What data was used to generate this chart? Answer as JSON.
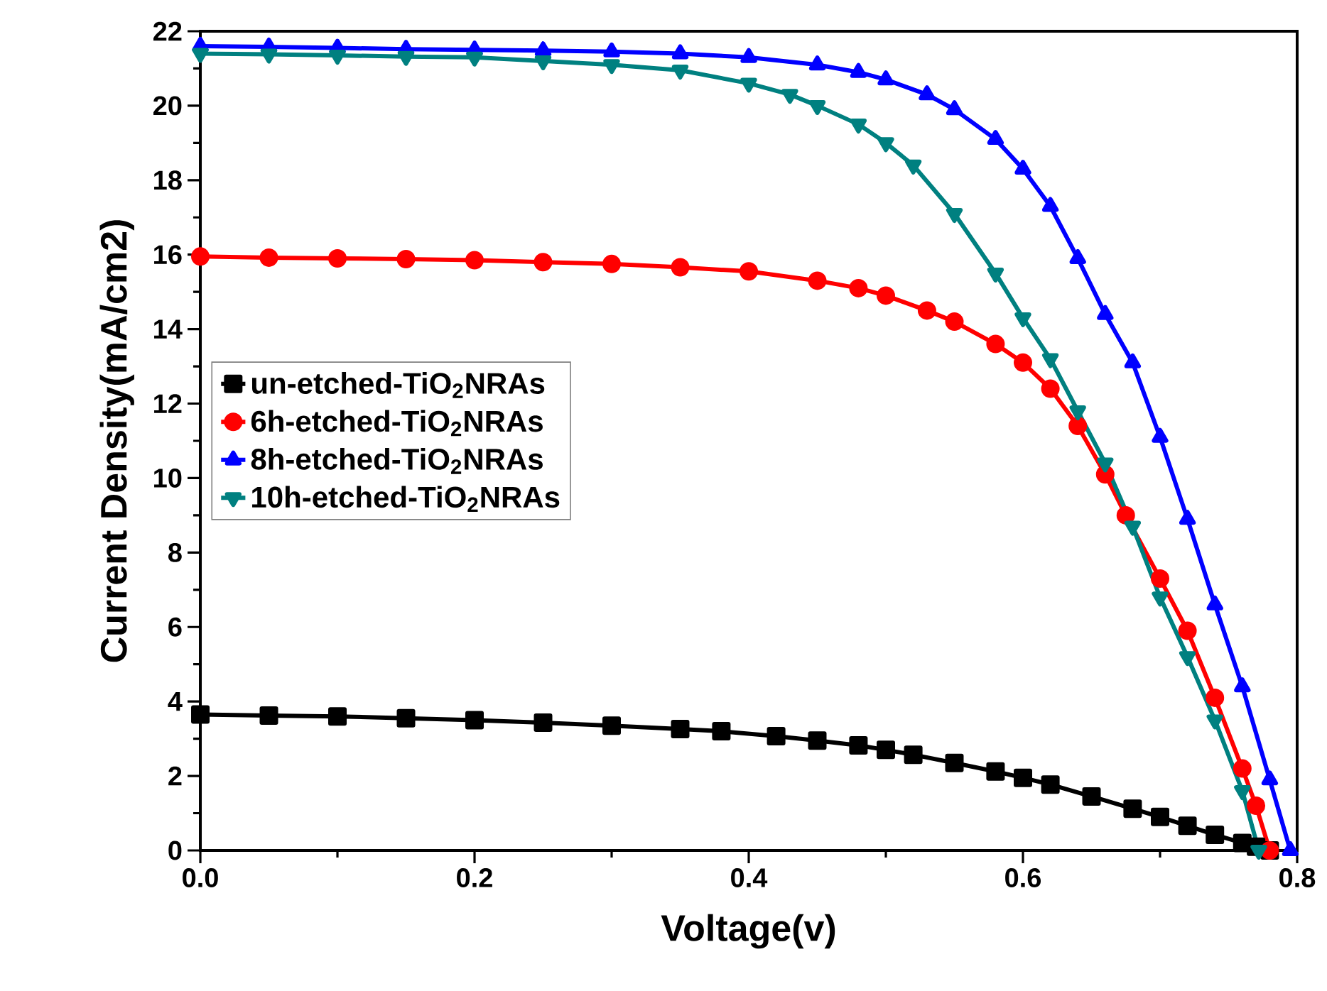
{
  "chart_data": {
    "type": "line",
    "xlabel": "Voltage(v)",
    "ylabel": "Current Density(mA/cm2)",
    "xlim": [
      0,
      0.8
    ],
    "ylim": [
      0,
      22
    ],
    "xticks": [
      {
        "value": 0,
        "label": "0.0"
      },
      0.2,
      0.4,
      0.6,
      0.8
    ],
    "yticks": [
      0,
      2,
      4,
      6,
      8,
      10,
      12,
      14,
      16,
      18,
      20,
      22
    ],
    "legend": "left",
    "line_style": "solid",
    "series": [
      {
        "name": "un-etched-TiO$_{2}$NRAs",
        "color": "#000000",
        "marker": "square",
        "x": [
          0,
          0.05,
          0.1,
          0.15,
          0.2,
          0.25,
          0.3,
          0.35,
          0.38,
          0.42,
          0.45,
          0.48,
          0.5,
          0.52,
          0.55,
          0.58,
          0.6,
          0.62,
          0.65,
          0.68,
          0.7,
          0.72,
          0.74,
          0.76,
          0.77,
          0.78
        ],
        "values": [
          3.65,
          3.62,
          3.6,
          3.55,
          3.5,
          3.43,
          3.35,
          3.26,
          3.2,
          3.07,
          2.95,
          2.82,
          2.7,
          2.57,
          2.35,
          2.12,
          1.95,
          1.77,
          1.45,
          1.12,
          0.9,
          0.66,
          0.42,
          0.2,
          0.1,
          0
        ]
      },
      {
        "name": "6h-etched-TiO$_{2}$NRAs",
        "color": "#ff0000",
        "marker": "circle",
        "x": [
          0,
          0.05,
          0.1,
          0.15,
          0.2,
          0.25,
          0.3,
          0.35,
          0.4,
          0.45,
          0.48,
          0.5,
          0.53,
          0.55,
          0.58,
          0.6,
          0.62,
          0.64,
          0.66,
          0.675,
          0.7,
          0.72,
          0.74,
          0.76,
          0.77,
          0.78
        ],
        "values": [
          15.95,
          15.92,
          15.9,
          15.88,
          15.85,
          15.8,
          15.75,
          15.66,
          15.55,
          15.3,
          15.1,
          14.9,
          14.5,
          14.2,
          13.6,
          13.1,
          12.4,
          11.4,
          10.1,
          9.0,
          7.3,
          5.9,
          4.1,
          2.2,
          1.2,
          0
        ]
      },
      {
        "name": "8h-etched-TiO$_{2}$NRAs",
        "color": "#0000ff",
        "marker": "triangle",
        "x": [
          0,
          0.05,
          0.1,
          0.15,
          0.2,
          0.25,
          0.3,
          0.35,
          0.4,
          0.45,
          0.48,
          0.5,
          0.53,
          0.55,
          0.58,
          0.6,
          0.62,
          0.64,
          0.66,
          0.68,
          0.7,
          0.72,
          0.74,
          0.76,
          0.78,
          0.795
        ],
        "values": [
          21.6,
          21.58,
          21.55,
          21.52,
          21.5,
          21.48,
          21.45,
          21.4,
          21.3,
          21.1,
          20.9,
          20.7,
          20.3,
          19.9,
          19.1,
          18.3,
          17.3,
          15.9,
          14.4,
          13.1,
          11.1,
          8.9,
          6.6,
          4.4,
          1.9,
          0
        ]
      },
      {
        "name": "10h-etched-TiO$_{2}$NRAs",
        "color": "#008080",
        "marker": "triangle-down",
        "x": [
          0,
          0.05,
          0.1,
          0.15,
          0.2,
          0.25,
          0.3,
          0.35,
          0.4,
          0.43,
          0.45,
          0.48,
          0.5,
          0.52,
          0.55,
          0.58,
          0.6,
          0.62,
          0.64,
          0.66,
          0.68,
          0.7,
          0.72,
          0.74,
          0.76,
          0.772
        ],
        "values": [
          21.4,
          21.38,
          21.35,
          21.32,
          21.3,
          21.2,
          21.1,
          20.95,
          20.6,
          20.3,
          20.0,
          19.5,
          19.0,
          18.4,
          17.1,
          15.5,
          14.3,
          13.2,
          11.8,
          10.4,
          8.7,
          6.8,
          5.2,
          3.5,
          1.6,
          0
        ]
      }
    ]
  }
}
